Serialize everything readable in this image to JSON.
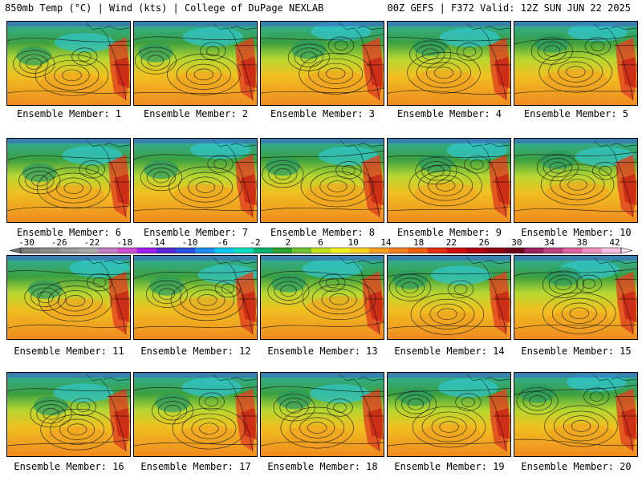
{
  "header": {
    "left": "850mb Temp (°C) | Wind (kts) | College of DuPage NEXLAB",
    "right": "00Z GEFS | F372 Valid: 12Z SUN JUN 22 2025"
  },
  "panels": [
    {
      "label": "Ensemble Member: 1"
    },
    {
      "label": "Ensemble Member: 2"
    },
    {
      "label": "Ensemble Member: 3"
    },
    {
      "label": "Ensemble Member: 4"
    },
    {
      "label": "Ensemble Member: 5"
    },
    {
      "label": "Ensemble Member: 6"
    },
    {
      "label": "Ensemble Member: 7"
    },
    {
      "label": "Ensemble Member: 8"
    },
    {
      "label": "Ensemble Member: 9"
    },
    {
      "label": "Ensemble Member: 10"
    },
    {
      "label": "Ensemble Member: 11"
    },
    {
      "label": "Ensemble Member: 12"
    },
    {
      "label": "Ensemble Member: 13"
    },
    {
      "label": "Ensemble Member: 14"
    },
    {
      "label": "Ensemble Member: 15"
    },
    {
      "label": "Ensemble Member: 16"
    },
    {
      "label": "Ensemble Member: 17"
    },
    {
      "label": "Ensemble Member: 18"
    },
    {
      "label": "Ensemble Member: 19"
    },
    {
      "label": "Ensemble Member: 20"
    }
  ],
  "colorbar": {
    "labels": [
      "-30",
      "-26",
      "-22",
      "-18",
      "-14",
      "-10",
      "-6",
      "-2",
      "2",
      "6",
      "10",
      "14",
      "18",
      "22",
      "26",
      "30",
      "34",
      "38",
      "42"
    ],
    "colors": [
      "#7d7d7d",
      "#8c8c8c",
      "#9b9b9b",
      "#aaaaaa",
      "#c47ec4",
      "#d04fd0",
      "#a020f0",
      "#5a2ad8",
      "#2b52e0",
      "#1f8cf0",
      "#00c8f0",
      "#00e0c0",
      "#00b070",
      "#30a030",
      "#70c030",
      "#c0e020",
      "#f0f020",
      "#f8d020",
      "#f8a020",
      "#f08020",
      "#f06010",
      "#e03010",
      "#d01010",
      "#b00010",
      "#900010",
      "#700020",
      "#a02060",
      "#c04080",
      "#e060a0",
      "#f090c0",
      "#f8c0e0"
    ]
  }
}
